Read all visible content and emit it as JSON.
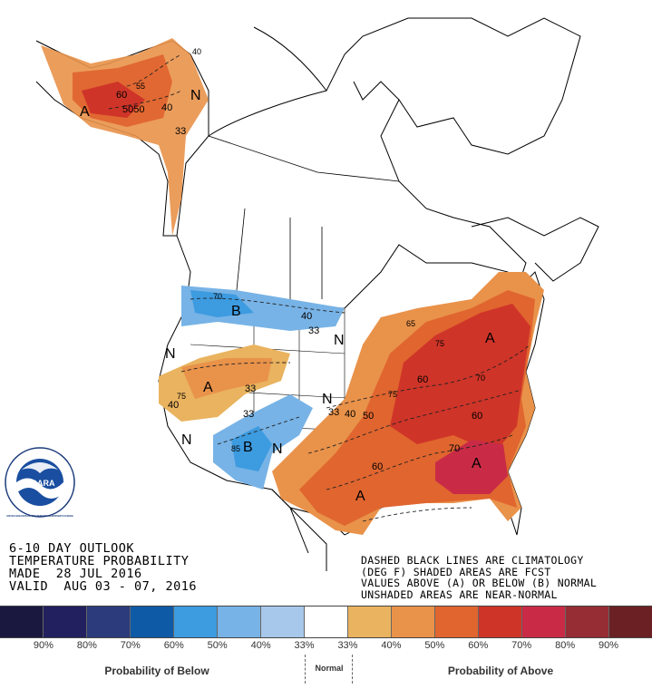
{
  "title_block": {
    "line1": "6-10 DAY OUTLOOK",
    "line2": "TEMPERATURE PROBABILITY",
    "line3": "MADE  28 JUL 2016",
    "line4": "VALID  AUG 03 - 07, 2016"
  },
  "notes": {
    "line1": "DASHED BLACK LINES ARE CLIMATOLOGY",
    "line2": "(DEG F) SHADED AREAS ARE FCST",
    "line3": "VALUES ABOVE (A) OR BELOW (B) NORMAL",
    "line4": "UNSHADED AREAS ARE NEAR-NORMAL"
  },
  "logo": {
    "text": "NOARA",
    "ring_text": "NATIONAL OCEANIC AND ATMOSPHERIC ADMINISTRATION · U.S. DEPARTMENT OF COMMERCE"
  },
  "legend": {
    "swatches": [
      "#1b1840",
      "#22205e",
      "#2b3b7c",
      "#0f5aa6",
      "#3d9be0",
      "#77b3e6",
      "#a7c8ea",
      "#ffffff",
      "#e9b35f",
      "#e9924a",
      "#e0652f",
      "#cf3428",
      "#c92b46",
      "#962c34",
      "#6b2123"
    ],
    "labels": [
      "90%",
      "80%",
      "70%",
      "60%",
      "50%",
      "40%",
      "33%",
      "33%",
      "40%",
      "50%",
      "60%",
      "70%",
      "80%",
      "90%"
    ],
    "below_caption": "Probability of Below",
    "normal_caption": "Normal",
    "above_caption": "Probability of Above"
  },
  "map_labels": {
    "alaska": [
      "A",
      "60",
      "5050",
      "40",
      "55",
      "33",
      "40",
      "N"
    ],
    "northwest": [
      "B",
      "70",
      "40",
      "33"
    ],
    "nv": [
      "A",
      "33",
      "75",
      "40",
      "N"
    ],
    "sw": [
      "B",
      "85",
      "33",
      "N",
      "N"
    ],
    "plains": [
      "N",
      "33",
      "40",
      "50",
      "N"
    ],
    "east": [
      "A",
      "A",
      "A",
      "60",
      "70",
      "60",
      "75",
      "75",
      "60",
      "70",
      "65"
    ]
  }
}
